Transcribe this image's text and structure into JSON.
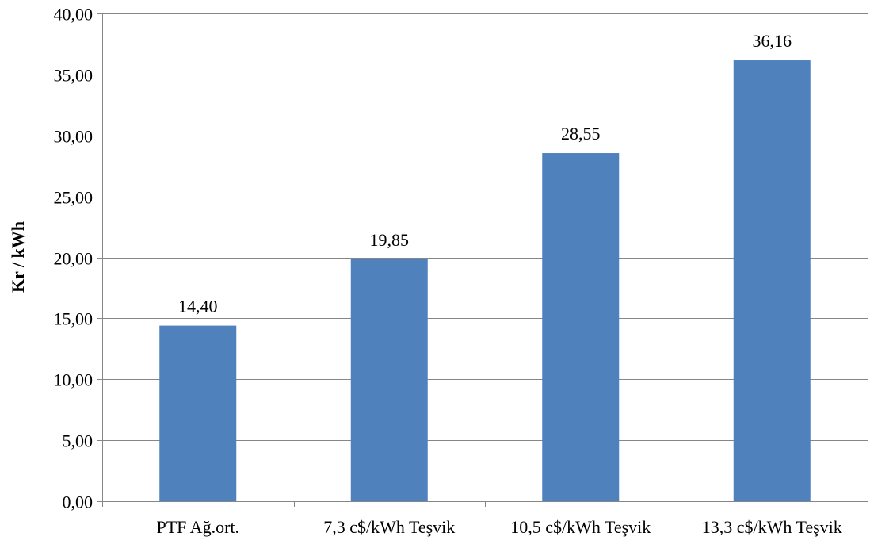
{
  "chart_data": {
    "type": "bar",
    "title": "",
    "xlabel": "",
    "ylabel": "Kr / kWh",
    "categories": [
      "PTF Ağ.ort.",
      "7,3 c$/kWh Teşvik",
      "10,5 c$/kWh Teşvik",
      "13,3 c$/kWh Teşvik"
    ],
    "values": [
      14.4,
      19.85,
      28.55,
      36.16
    ],
    "data_labels": [
      "14,40",
      "19,85",
      "28,55",
      "36,16"
    ],
    "ylim": [
      0,
      40
    ],
    "yticks": [
      0,
      5,
      10,
      15,
      20,
      25,
      30,
      35,
      40
    ],
    "ytick_labels": [
      "0,00",
      "5,00",
      "10,00",
      "15,00",
      "20,00",
      "25,00",
      "30,00",
      "35,00",
      "40,00"
    ],
    "grid": true,
    "legend": "none",
    "colors": {
      "bar": "#4F81BD",
      "grid": "#868686",
      "axis": "#868686"
    }
  }
}
